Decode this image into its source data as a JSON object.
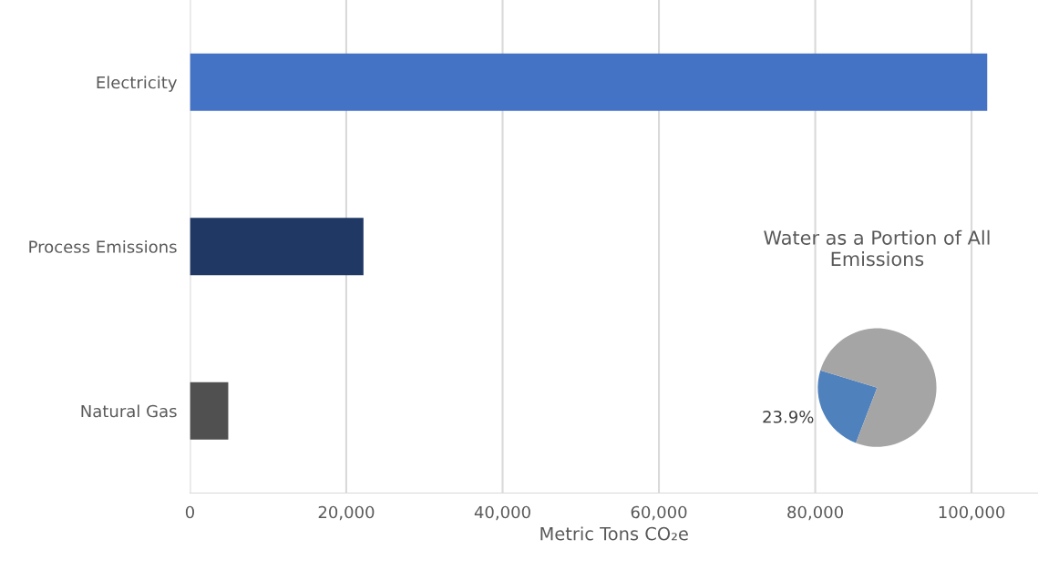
{
  "chart_data": [
    {
      "type": "bar",
      "orientation": "horizontal",
      "categories": [
        "Electricity",
        "Process Emissions",
        "Natural Gas"
      ],
      "values": [
        102000,
        22200,
        4900
      ],
      "colors": [
        "#4472c4",
        "#203864",
        "#505050"
      ],
      "xlabel": "Metric Tons CO₂e",
      "xlim": [
        0,
        108500
      ],
      "xticks": [
        {
          "value": 0,
          "label": "0"
        },
        {
          "value": 20000,
          "label": "20,000"
        },
        {
          "value": 40000,
          "label": "40,000"
        },
        {
          "value": 60000,
          "label": "60,000"
        },
        {
          "value": 80000,
          "label": "80,000"
        },
        {
          "value": 100000,
          "label": "100,000"
        }
      ],
      "grid": "x"
    },
    {
      "type": "pie",
      "title": "Water as a Portion of All Emissions",
      "categories": [
        null,
        null
      ],
      "values": [
        23.9,
        76.1
      ],
      "colors": [
        "#4f81bd",
        "#a5a5a5"
      ],
      "value_labels": [
        "23.9%",
        null
      ]
    }
  ]
}
